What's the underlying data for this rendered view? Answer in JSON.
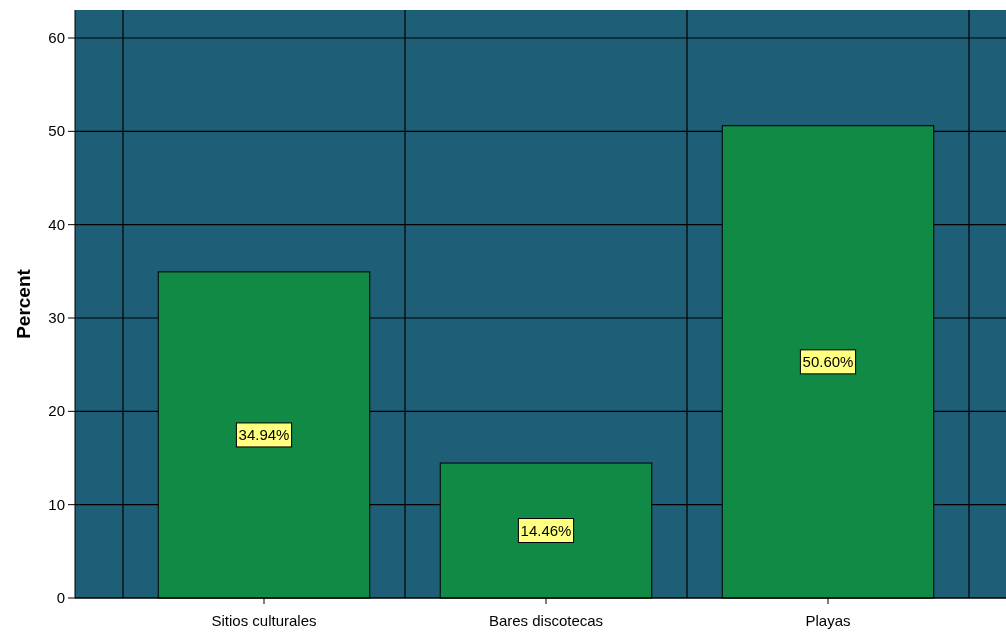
{
  "chart_data": {
    "type": "bar",
    "ylabel": "Percent",
    "categories": [
      "Sitios culturales",
      "Bares discotecas",
      "Playas"
    ],
    "values": [
      34.94,
      14.46,
      50.6
    ],
    "value_labels": [
      "34.94%",
      "14.46%",
      "50.60%"
    ],
    "color": "#118a45",
    "ylim": [
      0,
      63
    ],
    "yticks": [
      0,
      10,
      20,
      30,
      40,
      50,
      60
    ],
    "grid": true
  }
}
